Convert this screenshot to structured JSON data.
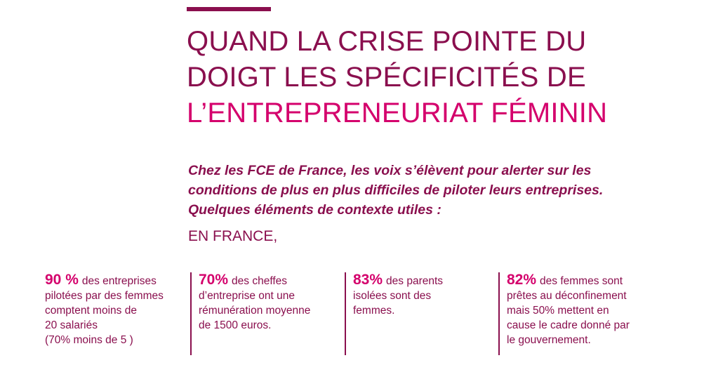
{
  "title": {
    "line1": "QUAND LA CRISE POINTE DU",
    "line2": "DOIGT LES SPÉCIFICITÉS DE",
    "line3": "L’ENTREPRENEURIAT FÉMININ"
  },
  "intro": {
    "line1": "Chez les FCE de France, les voix s’élèvent pour alerter sur les",
    "line2": "conditions de plus en plus difficiles de piloter leurs entreprises.",
    "line3": "Quelques éléments de contexte utiles :"
  },
  "section_label": "EN FRANCE,",
  "stats": [
    {
      "value": "90 %",
      "lines": [
        "des entreprises",
        "pilotées par des femmes",
        "comptent moins de",
        "20 salariés",
        "(70% moins de 5 )"
      ]
    },
    {
      "value": "70%",
      "lines": [
        "des cheffes",
        "d’entreprise ont une",
        "rémunération moyenne",
        "de 1500 euros."
      ]
    },
    {
      "value": "83%",
      "lines": [
        "des parents",
        "isolées sont des",
        "femmes."
      ]
    },
    {
      "value": "82%",
      "lines": [
        "des femmes sont",
        "prêtes au déconfinement",
        "mais 50% mettent en",
        "cause le cadre donné par",
        "le gouvernement."
      ]
    }
  ],
  "colors": {
    "primary": "#8a0f4e",
    "accent": "#d4006c"
  }
}
